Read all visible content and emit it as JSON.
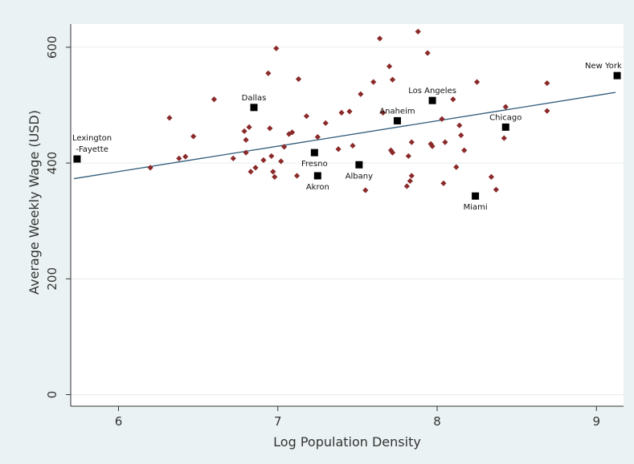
{
  "chart_data": {
    "type": "scatter",
    "xlabel": "Log Population Density",
    "ylabel": "Average Weekly Wage (USD)",
    "xlim": [
      5.7,
      9.17
    ],
    "ylim": [
      -20,
      640
    ],
    "xticks": [
      6,
      7,
      8,
      9
    ],
    "yticks": [
      0,
      200,
      400,
      600
    ],
    "grid": "horizontal",
    "colors": {
      "plot_background": "#ffffff",
      "outer_background": "#eaf2f3",
      "points": "#8b2a2a",
      "highlighted": "#000000",
      "fit_line": "#2e5a78",
      "grid": "#e6ecee"
    },
    "fit_line": {
      "x": [
        5.72,
        9.12
      ],
      "y": [
        373,
        522
      ]
    },
    "points": [
      {
        "x": 6.2,
        "y": 392
      },
      {
        "x": 6.32,
        "y": 478
      },
      {
        "x": 6.38,
        "y": 408
      },
      {
        "x": 6.42,
        "y": 411
      },
      {
        "x": 6.47,
        "y": 446
      },
      {
        "x": 6.6,
        "y": 510
      },
      {
        "x": 6.72,
        "y": 408
      },
      {
        "x": 6.79,
        "y": 455
      },
      {
        "x": 6.8,
        "y": 440
      },
      {
        "x": 6.8,
        "y": 418
      },
      {
        "x": 6.82,
        "y": 462
      },
      {
        "x": 6.83,
        "y": 385
      },
      {
        "x": 6.86,
        "y": 392
      },
      {
        "x": 6.91,
        "y": 405
      },
      {
        "x": 6.94,
        "y": 555
      },
      {
        "x": 6.95,
        "y": 460
      },
      {
        "x": 6.96,
        "y": 412
      },
      {
        "x": 6.97,
        "y": 385
      },
      {
        "x": 6.98,
        "y": 376
      },
      {
        "x": 6.99,
        "y": 598
      },
      {
        "x": 7.02,
        "y": 403
      },
      {
        "x": 7.04,
        "y": 428
      },
      {
        "x": 7.07,
        "y": 450
      },
      {
        "x": 7.09,
        "y": 453
      },
      {
        "x": 7.12,
        "y": 378
      },
      {
        "x": 7.13,
        "y": 545
      },
      {
        "x": 7.18,
        "y": 481
      },
      {
        "x": 7.25,
        "y": 445
      },
      {
        "x": 7.3,
        "y": 469
      },
      {
        "x": 7.38,
        "y": 424
      },
      {
        "x": 7.4,
        "y": 487
      },
      {
        "x": 7.45,
        "y": 489
      },
      {
        "x": 7.47,
        "y": 430
      },
      {
        "x": 7.52,
        "y": 519
      },
      {
        "x": 7.55,
        "y": 353
      },
      {
        "x": 7.6,
        "y": 540
      },
      {
        "x": 7.64,
        "y": 615
      },
      {
        "x": 7.66,
        "y": 487
      },
      {
        "x": 7.7,
        "y": 567
      },
      {
        "x": 7.71,
        "y": 422
      },
      {
        "x": 7.72,
        "y": 418
      },
      {
        "x": 7.72,
        "y": 544
      },
      {
        "x": 7.81,
        "y": 360
      },
      {
        "x": 7.82,
        "y": 412
      },
      {
        "x": 7.83,
        "y": 369
      },
      {
        "x": 7.84,
        "y": 378
      },
      {
        "x": 7.84,
        "y": 436
      },
      {
        "x": 7.88,
        "y": 627
      },
      {
        "x": 7.94,
        "y": 590
      },
      {
        "x": 7.96,
        "y": 433
      },
      {
        "x": 7.97,
        "y": 429
      },
      {
        "x": 8.03,
        "y": 476
      },
      {
        "x": 8.04,
        "y": 365
      },
      {
        "x": 8.05,
        "y": 436
      },
      {
        "x": 8.1,
        "y": 510
      },
      {
        "x": 8.12,
        "y": 393
      },
      {
        "x": 8.14,
        "y": 465
      },
      {
        "x": 8.15,
        "y": 448
      },
      {
        "x": 8.17,
        "y": 422
      },
      {
        "x": 8.25,
        "y": 540
      },
      {
        "x": 8.34,
        "y": 376
      },
      {
        "x": 8.37,
        "y": 354
      },
      {
        "x": 8.42,
        "y": 443
      },
      {
        "x": 8.43,
        "y": 497
      },
      {
        "x": 8.69,
        "y": 538
      },
      {
        "x": 8.69,
        "y": 490
      }
    ],
    "highlighted": [
      {
        "name": "Lexington\n-Fayette",
        "x": 5.74,
        "y": 407,
        "label_pos": "above"
      },
      {
        "name": "Dallas",
        "x": 6.85,
        "y": 496,
        "label_pos": "above"
      },
      {
        "name": "Fresno",
        "x": 7.23,
        "y": 418,
        "label_pos": "below"
      },
      {
        "name": "Akron",
        "x": 7.25,
        "y": 378,
        "label_pos": "below"
      },
      {
        "name": "Albany",
        "x": 7.51,
        "y": 397,
        "label_pos": "below"
      },
      {
        "name": "Anaheim",
        "x": 7.75,
        "y": 473,
        "label_pos": "above"
      },
      {
        "name": "Los Angeles",
        "x": 7.97,
        "y": 508,
        "label_pos": "above"
      },
      {
        "name": "Miami",
        "x": 8.24,
        "y": 343,
        "label_pos": "below"
      },
      {
        "name": "Chicago",
        "x": 8.43,
        "y": 462,
        "label_pos": "above"
      },
      {
        "name": "New York",
        "x": 9.13,
        "y": 551,
        "label_pos": "above"
      }
    ]
  }
}
